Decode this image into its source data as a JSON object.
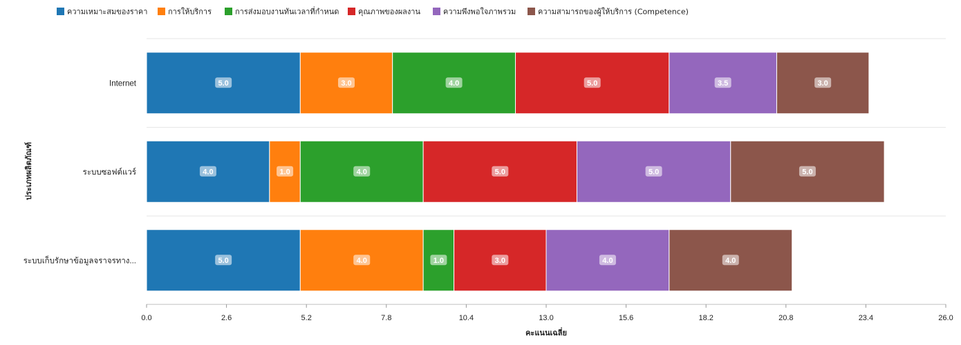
{
  "chart_data": {
    "type": "bar",
    "orientation": "horizontal",
    "stacked": true,
    "categories": [
      "Internet",
      "ระบบซอฟต์แวร์",
      "ระบบเก็บรักษาข้อมูลจราจรทาง..."
    ],
    "series": [
      {
        "name": "ความเหมาะสมของราคา",
        "color": "#1f77b4",
        "values": [
          5.0,
          4.0,
          5.0
        ]
      },
      {
        "name": "การให้บริการ",
        "color": "#ff7f0e",
        "values": [
          3.0,
          1.0,
          4.0
        ]
      },
      {
        "name": "การส่งมอบงานทันเวลาที่กำหนด",
        "color": "#2ca02c",
        "values": [
          4.0,
          4.0,
          1.0
        ]
      },
      {
        "name": "คุณภาพของผลงาน",
        "color": "#d62728",
        "values": [
          5.0,
          5.0,
          3.0
        ]
      },
      {
        "name": "ความพึงพอใจภาพรวม",
        "color": "#9467bd",
        "values": [
          3.5,
          5.0,
          4.0
        ]
      },
      {
        "name": "ความสามารถของผู้ให้บริการ (Competence)",
        "color": "#8c564b",
        "values": [
          3.0,
          5.0,
          4.0
        ]
      }
    ],
    "xlabel": "คะแนนเฉลี่ย",
    "ylabel": "ประเภทผลิตภัณฑ์",
    "xlim": [
      0,
      26
    ],
    "xticks": [
      "0.0",
      "2.6",
      "5.2",
      "7.8",
      "10.4",
      "13.0",
      "15.6",
      "18.2",
      "20.8",
      "23.4",
      "26.0"
    ],
    "legend_position": "top-left",
    "grid": true
  }
}
